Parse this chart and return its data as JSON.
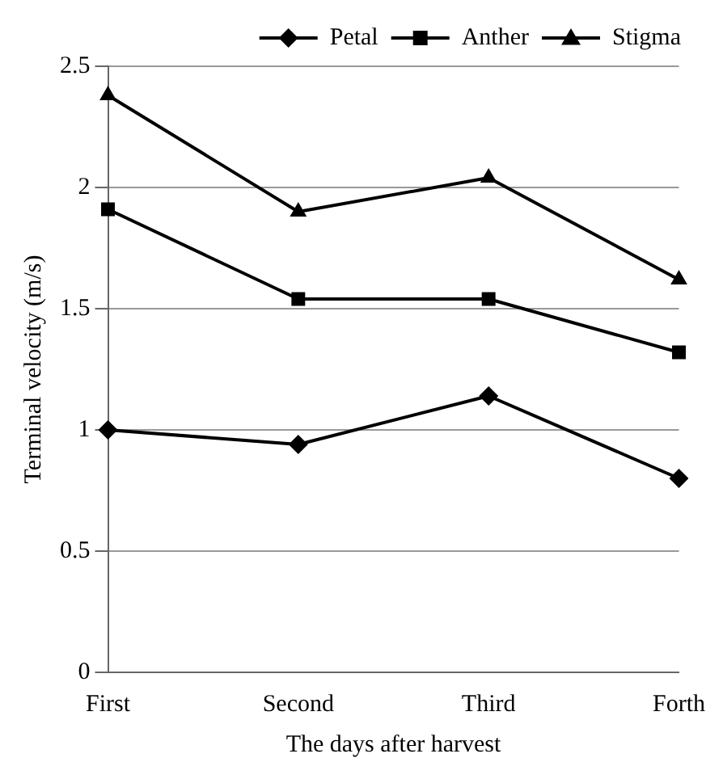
{
  "chart_data": {
    "type": "line",
    "xlabel": "The days after harvest",
    "ylabel": "Terminal velocity (m/s)",
    "categories": [
      "First",
      "Second",
      "Third",
      "Forth"
    ],
    "series": [
      {
        "name": "Petal",
        "color": "#000000",
        "marker": "diamond",
        "values": [
          1.0,
          0.94,
          1.14,
          0.8
        ]
      },
      {
        "name": "Anther",
        "color": "#000000",
        "marker": "square",
        "values": [
          1.91,
          1.54,
          1.54,
          1.32
        ]
      },
      {
        "name": "Stigma",
        "color": "#000000",
        "marker": "triangle",
        "values": [
          2.38,
          1.9,
          2.04,
          1.62
        ]
      }
    ],
    "ylim": [
      0,
      2.5
    ],
    "yticks": [
      0,
      0.5,
      1,
      1.5,
      2,
      2.5
    ],
    "grid": "y",
    "legend": "top",
    "line_style": "solid"
  }
}
